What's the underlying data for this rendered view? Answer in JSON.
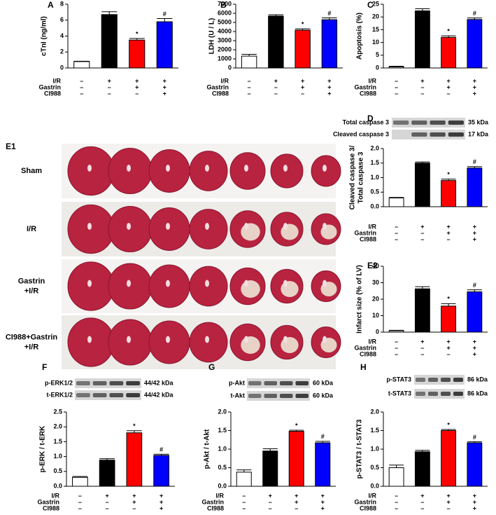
{
  "chart_data": [
    {
      "type": "bar",
      "panel": "A",
      "ylabel": "cTnI (ng/ml)",
      "categories": [
        null,
        null,
        null,
        null
      ],
      "values": [
        0.8,
        6.7,
        3.5,
        5.8
      ],
      "errors": [
        0.05,
        0.35,
        0.2,
        0.4
      ],
      "markers": [
        null,
        null,
        "*",
        "#"
      ],
      "colors": [
        "#ffffff",
        "#000000",
        "#ff0000",
        "#0000ff"
      ],
      "ylim": [
        0,
        8
      ],
      "yticks": [
        0,
        2,
        4,
        6,
        8
      ],
      "conditions": [
        {
          "name": "I/R",
          "signs": [
            "–",
            "+",
            "+",
            "+"
          ]
        },
        {
          "name": "Gastrin",
          "signs": [
            "–",
            "–",
            "+",
            "+"
          ]
        },
        {
          "name": "CI988",
          "signs": [
            "–",
            "–",
            "–",
            "+"
          ]
        }
      ]
    },
    {
      "type": "bar",
      "panel": "B",
      "ylabel": "LDH (U / L)",
      "categories": [
        null,
        null,
        null,
        null
      ],
      "values": [
        1300,
        5700,
        4150,
        5300
      ],
      "errors": [
        200,
        150,
        150,
        200
      ],
      "markers": [
        null,
        null,
        "*",
        "#"
      ],
      "colors": [
        "#ffffff",
        "#000000",
        "#ff0000",
        "#0000ff"
      ],
      "ylim": [
        0,
        7000
      ],
      "yticks": [
        0,
        1000,
        2000,
        3000,
        4000,
        5000,
        6000,
        7000
      ],
      "conditions": [
        {
          "name": "I/R",
          "signs": [
            "–",
            "+",
            "+",
            "+"
          ]
        },
        {
          "name": "Gastrin",
          "signs": [
            "–",
            "–",
            "+",
            "+"
          ]
        },
        {
          "name": "CI988",
          "signs": [
            "–",
            "–",
            "–",
            "+"
          ]
        }
      ]
    },
    {
      "type": "bar",
      "panel": "C",
      "ylabel": "Apoptosis (%)",
      "categories": [
        null,
        null,
        null,
        null
      ],
      "values": [
        0.4,
        22.4,
        12,
        19
      ],
      "errors": [
        0.3,
        0.8,
        0.6,
        0.6
      ],
      "markers": [
        null,
        null,
        "*",
        "#"
      ],
      "colors": [
        "#ffffff",
        "#000000",
        "#ff0000",
        "#0000ff"
      ],
      "ylim": [
        0,
        25
      ],
      "yticks": [
        0,
        5,
        10,
        15,
        20,
        25
      ],
      "conditions": [
        {
          "name": "I/R",
          "signs": [
            "–",
            "+",
            "+",
            "+"
          ]
        },
        {
          "name": "Gastrin",
          "signs": [
            "–",
            "–",
            "+",
            "+"
          ]
        },
        {
          "name": "CI988",
          "signs": [
            "–",
            "–",
            "–",
            "+"
          ]
        }
      ]
    },
    {
      "type": "bar",
      "panel": "D",
      "ylabel": [
        "Cleaved caspase 3/",
        "Total caspase 3"
      ],
      "categories": [
        null,
        null,
        null,
        null
      ],
      "values": [
        0.3,
        1.5,
        0.9,
        1.33
      ],
      "errors": [
        0.02,
        0.04,
        0.05,
        0.05
      ],
      "markers": [
        null,
        null,
        "*",
        "#"
      ],
      "colors": [
        "#ffffff",
        "#000000",
        "#ff0000",
        "#0000ff"
      ],
      "ylim": [
        0,
        2
      ],
      "yticks": [
        {
          "value": 0,
          "label": "0.0"
        },
        {
          "value": 0.5,
          "label": "0.5"
        },
        {
          "value": 1,
          "label": "1.0"
        },
        {
          "value": 1.5,
          "label": "1.5"
        },
        {
          "value": 2,
          "label": "2.0"
        }
      ],
      "blot": [
        {
          "name": "Total caspase 3",
          "size": "35 kDa"
        },
        {
          "name": "Cleaved caspase 3",
          "size": "17 kDa"
        }
      ],
      "conditions": [
        {
          "name": "I/R",
          "signs": [
            "–",
            "+",
            "+",
            "+"
          ]
        },
        {
          "name": "Gastrin",
          "signs": [
            "–",
            "–",
            "+",
            "+"
          ]
        },
        {
          "name": "CI988",
          "signs": [
            "–",
            "–",
            "–",
            "+"
          ]
        }
      ]
    },
    {
      "type": "bar",
      "panel": "E2",
      "ylabel": "Infarct size (% of LV)",
      "categories": [
        null,
        null,
        null,
        null
      ],
      "values": [
        0.8,
        26.3,
        15.8,
        24.5
      ],
      "errors": [
        0.3,
        1.3,
        1.5,
        1.2
      ],
      "markers": [
        null,
        null,
        "*",
        "#"
      ],
      "colors": [
        "#ffffff",
        "#000000",
        "#ff0000",
        "#0000ff"
      ],
      "ylim": [
        0,
        40
      ],
      "yticks": [
        0,
        10,
        20,
        30,
        40
      ],
      "conditions": [
        {
          "name": "I/R",
          "signs": [
            "–",
            "+",
            "+",
            "+"
          ]
        },
        {
          "name": "Gastrin",
          "signs": [
            "–",
            "–",
            "+",
            "+"
          ]
        },
        {
          "name": "CI988",
          "signs": [
            "–",
            "–",
            "–",
            "+"
          ]
        }
      ]
    },
    {
      "type": "bar",
      "panel": "F",
      "ylabel": "p-ERK / t-ERK",
      "categories": [
        null,
        null,
        null,
        null
      ],
      "values": [
        0.3,
        0.88,
        1.8,
        1.04
      ],
      "errors": [
        0.03,
        0.05,
        0.07,
        0.04
      ],
      "markers": [
        null,
        null,
        "*",
        "#"
      ],
      "colors": [
        "#ffffff",
        "#000000",
        "#ff0000",
        "#0000ff"
      ],
      "ylim": [
        0,
        2.5
      ],
      "yticks": [
        {
          "value": 0,
          "label": "0.0"
        },
        {
          "value": 0.5,
          "label": "0.5"
        },
        {
          "value": 1,
          "label": "1.0"
        },
        {
          "value": 1.5,
          "label": "1.5"
        },
        {
          "value": 2,
          "label": "2.0"
        },
        {
          "value": 2.5,
          "label": "2.5"
        }
      ],
      "blot": [
        {
          "name": "p-ERK1/2",
          "size": "44/42 kDa"
        },
        {
          "name": "t-ERK1/2",
          "size": "44/42 kDa"
        }
      ],
      "conditions": [
        {
          "name": "I/R",
          "signs": [
            "–",
            "+",
            "+",
            "+"
          ]
        },
        {
          "name": "Gastrin",
          "signs": [
            "–",
            "–",
            "+",
            "+"
          ]
        },
        {
          "name": "CI988",
          "signs": [
            "–",
            "–",
            "–",
            "+"
          ]
        }
      ]
    },
    {
      "type": "bar",
      "panel": "G",
      "ylabel": "p-Akt / t-Akt",
      "categories": [
        null,
        null,
        null,
        null
      ],
      "values": [
        0.38,
        0.95,
        1.48,
        1.17
      ],
      "errors": [
        0.06,
        0.06,
        0.03,
        0.04
      ],
      "markers": [
        null,
        null,
        "*",
        "#"
      ],
      "colors": [
        "#ffffff",
        "#000000",
        "#ff0000",
        "#0000ff"
      ],
      "ylim": [
        0,
        2
      ],
      "yticks": [
        {
          "value": 0,
          "label": "0.0"
        },
        {
          "value": 0.5,
          "label": "0.5"
        },
        {
          "value": 1,
          "label": "1.0"
        },
        {
          "value": 1.5,
          "label": "1.5"
        },
        {
          "value": 2,
          "label": "2.0"
        }
      ],
      "blot": [
        {
          "name": "p-Akt",
          "size": "60 kDa"
        },
        {
          "name": "t-Akt",
          "size": "60 kDa"
        }
      ],
      "conditions": [
        {
          "name": "I/R",
          "signs": [
            "–",
            "+",
            "+",
            "+"
          ]
        },
        {
          "name": "Gastrin",
          "signs": [
            "–",
            "–",
            "+",
            "+"
          ]
        },
        {
          "name": "CI988",
          "signs": [
            "–",
            "–",
            "–",
            "+"
          ]
        }
      ]
    },
    {
      "type": "bar",
      "panel": "H",
      "ylabel": "p-STAT3 / t-STAT3",
      "categories": [
        null,
        null,
        null,
        null
      ],
      "values": [
        0.5,
        0.93,
        1.5,
        1.17
      ],
      "errors": [
        0.07,
        0.04,
        0.03,
        0.03
      ],
      "markers": [
        null,
        null,
        "*",
        "#"
      ],
      "colors": [
        "#ffffff",
        "#000000",
        "#ff0000",
        "#0000ff"
      ],
      "ylim": [
        0,
        2
      ],
      "yticks": [
        {
          "value": 0,
          "label": "0.0"
        },
        {
          "value": 0.5,
          "label": "0.5"
        },
        {
          "value": 1,
          "label": "1.0"
        },
        {
          "value": 1.5,
          "label": "1.5"
        },
        {
          "value": 2,
          "label": "2.0"
        }
      ],
      "blot": [
        {
          "name": "p-STAT3",
          "size": "86 kDa"
        },
        {
          "name": "t-STAT3",
          "size": "86 kDa"
        }
      ],
      "conditions": [
        {
          "name": "I/R",
          "signs": [
            "–",
            "+",
            "+",
            "+"
          ]
        },
        {
          "name": "Gastrin",
          "signs": [
            "–",
            "–",
            "+",
            "+"
          ]
        },
        {
          "name": "CI988",
          "signs": [
            "–",
            "–",
            "–",
            "+"
          ]
        }
      ]
    }
  ],
  "heart_sections": {
    "panel": "E1",
    "groups": [
      [
        "Sham"
      ],
      [
        "I/R"
      ],
      [
        "Gastrin",
        "+I/R"
      ],
      [
        "CI988+Gastrin",
        "+I/R"
      ]
    ]
  }
}
